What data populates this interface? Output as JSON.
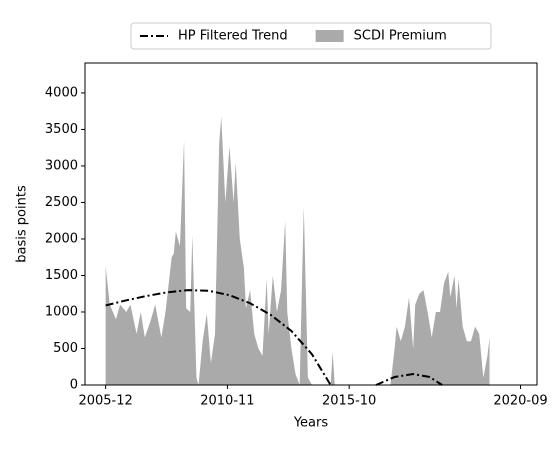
{
  "chart_data": {
    "type": "area-line",
    "x_label": "Years",
    "y_label": "basis points",
    "xlim": [
      -10,
      209
    ],
    "ylim": [
      0,
      4410
    ],
    "xticks": [
      {
        "value": 0,
        "label": "2005-12"
      },
      {
        "value": 59,
        "label": "2010-11"
      },
      {
        "value": 118,
        "label": "2015-10"
      },
      {
        "value": 201,
        "label": "2020-09"
      }
    ],
    "yticks": [
      0,
      500,
      1000,
      1500,
      2000,
      2500,
      3000,
      3500,
      4000
    ],
    "legend": "top",
    "series": [
      {
        "name": "HP Filtered Trend",
        "type": "line",
        "style": "dashdot",
        "color": "#000000",
        "x": [
          0,
          10,
          20,
          30,
          40,
          50,
          60,
          70,
          80,
          90,
          100,
          109,
          120,
          131,
          140,
          149,
          157,
          163
        ],
        "values": [
          1090,
          1160,
          1220,
          1270,
          1300,
          1290,
          1230,
          1120,
          960,
          740,
          420,
          0,
          null,
          0,
          110,
          150,
          110,
          0
        ]
      },
      {
        "name": "SCDI Premium",
        "type": "area",
        "color": "#aaaaaa",
        "x": [
          0,
          2,
          5,
          7,
          10,
          12,
          15,
          17,
          19,
          22,
          24,
          27,
          29,
          32,
          33,
          34,
          36,
          38,
          39,
          41,
          42,
          44,
          45,
          47,
          49,
          51,
          53,
          55,
          56,
          58,
          60,
          62,
          63,
          65,
          67,
          68,
          70,
          72,
          74,
          76,
          78,
          79,
          81,
          83,
          85,
          87,
          88,
          90,
          92,
          94,
          96,
          98,
          100,
          109,
          110,
          111,
          138,
          140,
          141,
          143,
          145,
          147,
          149,
          150,
          152,
          154,
          156,
          158,
          160,
          162,
          164,
          166,
          167,
          169,
          170,
          171,
          173,
          175,
          177,
          179,
          181,
          183,
          185,
          186
        ],
        "values": [
          1630,
          1100,
          900,
          1100,
          1000,
          1100,
          700,
          1000,
          650,
          900,
          1100,
          650,
          1000,
          1750,
          1800,
          2100,
          1900,
          3350,
          1050,
          1000,
          2050,
          100,
          0,
          600,
          980,
          300,
          700,
          3300,
          3680,
          2500,
          3270,
          2500,
          3050,
          2000,
          1600,
          1050,
          1300,
          700,
          500,
          400,
          1450,
          700,
          1500,
          1000,
          1300,
          2250,
          1000,
          500,
          150,
          0,
          2450,
          100,
          0,
          0,
          450,
          0,
          0,
          500,
          800,
          600,
          800,
          1200,
          500,
          1100,
          1250,
          1300,
          1000,
          650,
          1000,
          1000,
          1400,
          1550,
          1200,
          1500,
          1050,
          1450,
          800,
          600,
          600,
          800,
          700,
          100,
          400,
          650
        ]
      }
    ]
  }
}
